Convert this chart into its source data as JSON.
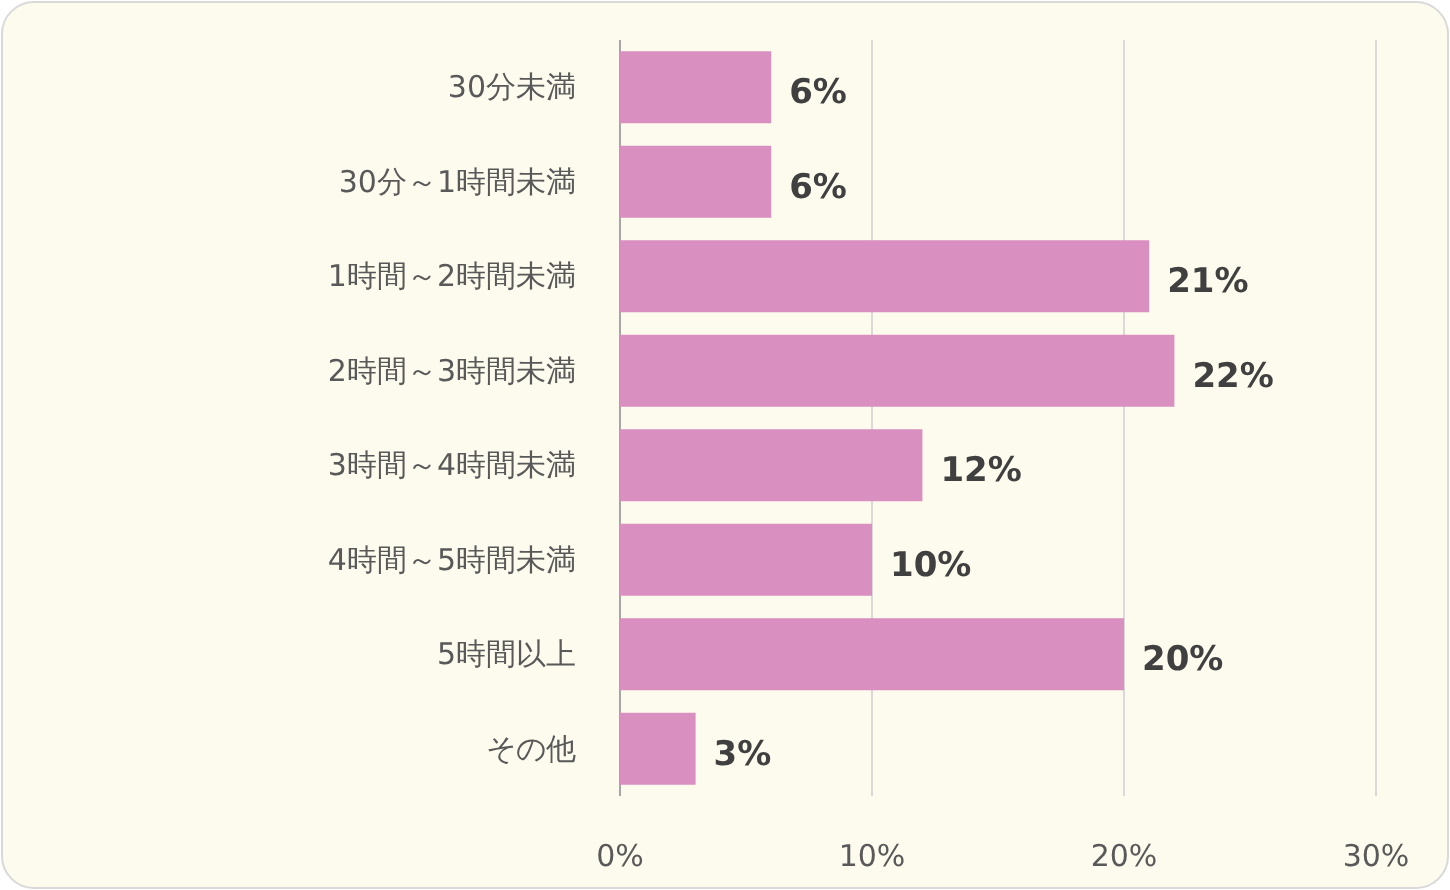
{
  "chart_data": {
    "type": "bar",
    "orientation": "horizontal",
    "categories": [
      "30分未満",
      "30分～1時間未満",
      "1時間～2時間未満",
      "2時間～3時間未満",
      "3時間～4時間未満",
      "4時間～5時間未満",
      "5時間以上",
      "その他"
    ],
    "values": [
      6,
      6,
      21,
      22,
      12,
      10,
      20,
      3
    ],
    "value_labels": [
      "6%",
      "6%",
      "21%",
      "22%",
      "12%",
      "10%",
      "20%",
      "3%"
    ],
    "color": "#d98fbf",
    "xlim": [
      0,
      30
    ],
    "xticks": [
      {
        "value": 0,
        "label": "0%"
      },
      {
        "value": 10,
        "label": "10%"
      },
      {
        "value": 20,
        "label": "20%"
      },
      {
        "value": 30,
        "label": "30%"
      }
    ],
    "grid": "x"
  }
}
